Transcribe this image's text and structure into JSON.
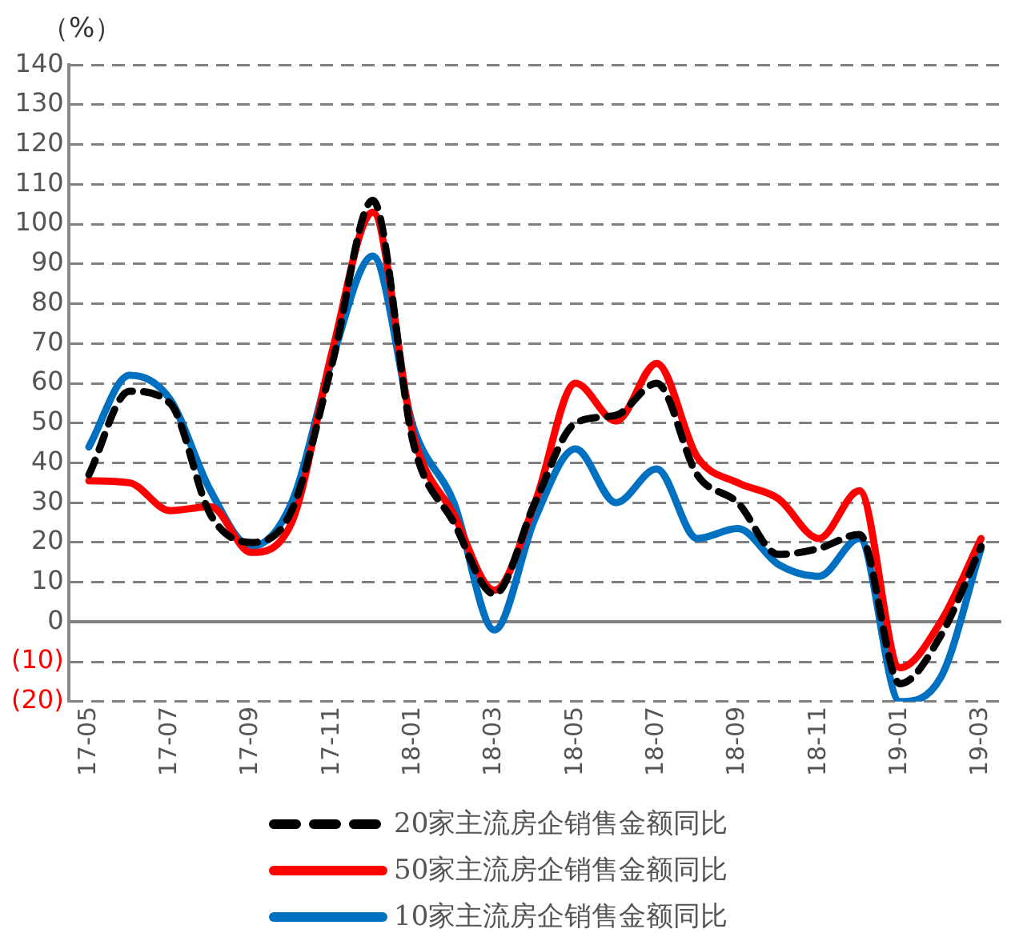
{
  "chart_data": {
    "type": "line",
    "ylabel": "（%）",
    "categories": [
      "17-05",
      null,
      "17-07",
      null,
      "17-09",
      null,
      "17-11",
      null,
      "18-01",
      null,
      "18-03",
      null,
      "18-05",
      null,
      "18-07",
      null,
      "18-09",
      null,
      "18-11",
      null,
      "19-01",
      null,
      "19-03"
    ],
    "series": [
      {
        "name": "20家主流房企销售金额同比",
        "color": "#000000",
        "line_style": "dashed",
        "values": [
          37,
          58,
          55,
          27,
          20,
          28,
          65,
          106,
          45,
          25,
          7,
          30,
          50,
          52,
          60,
          37,
          30,
          17,
          18.5,
          22,
          -15.5,
          -3.5,
          19
        ]
      },
      {
        "name": "50家主流房企销售金额同比",
        "color": "#ff0000",
        "line_style": "solid",
        "values": [
          35.5,
          35,
          28,
          29,
          17.5,
          25,
          68,
          103,
          47,
          27,
          8,
          30,
          60,
          50.5,
          65,
          41.5,
          35,
          31,
          21,
          33,
          -11.5,
          0,
          21
        ]
      },
      {
        "name": "10家主流房企销售金额同比",
        "color": "#0070c0",
        "line_style": "solid",
        "values": [
          44,
          62,
          56,
          33,
          19,
          30,
          66,
          92,
          49,
          30,
          -2,
          26,
          43.5,
          30,
          38.5,
          21,
          23.5,
          14.5,
          11.5,
          21,
          -20,
          -14,
          18.5
        ]
      }
    ],
    "ylim": [
      -20,
      140
    ],
    "yticks": [
      {
        "value": -20,
        "label": "(20)"
      },
      {
        "value": -10,
        "label": "(10)"
      },
      0,
      10,
      20,
      30,
      40,
      50,
      60,
      70,
      80,
      90,
      100,
      110,
      120,
      130,
      140
    ],
    "grid": "y",
    "legend": "bottom",
    "marker": "none"
  }
}
